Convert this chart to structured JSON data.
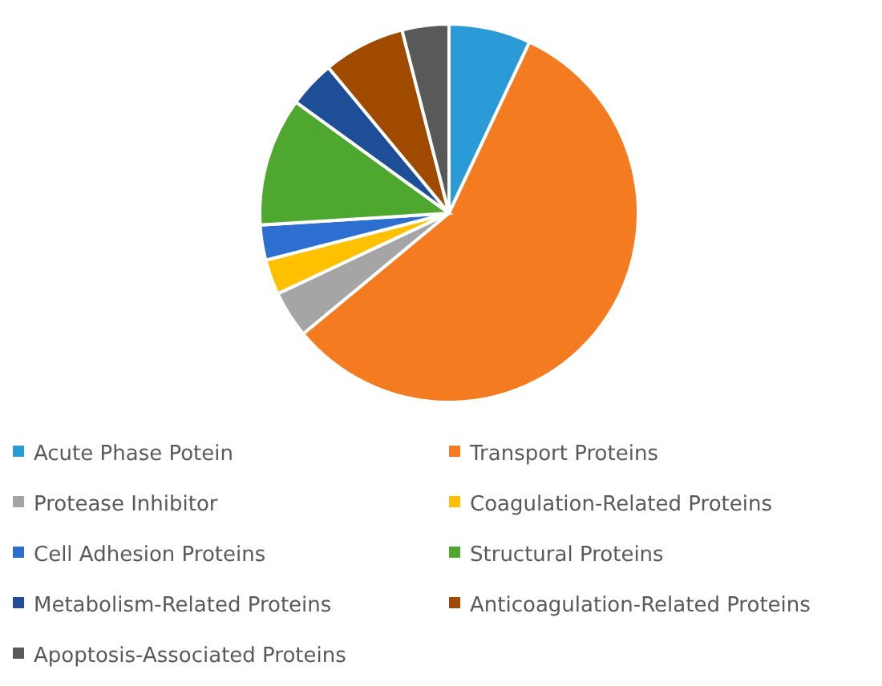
{
  "chart_data": {
    "type": "pie",
    "categories": [
      "Acute Phase Potein",
      "Transport Proteins",
      "Protease Inhibitor",
      "Coagulation-Related Proteins",
      "Cell Adhesion Proteins",
      "Structural Proteins",
      "Metabolism-Related Proteins",
      "Anticoagulation-Related Proteins",
      "Apoptosis-Associated Proteins"
    ],
    "values": [
      7,
      57,
      4,
      3,
      3,
      11,
      4,
      7,
      4
    ],
    "colors": [
      "#2b9bd8",
      "#f47b20",
      "#a5a5a5",
      "#ffc000",
      "#2d6fd1",
      "#4ea72e",
      "#1f4e99",
      "#a04a00",
      "#595959"
    ],
    "legend": "bottom"
  }
}
